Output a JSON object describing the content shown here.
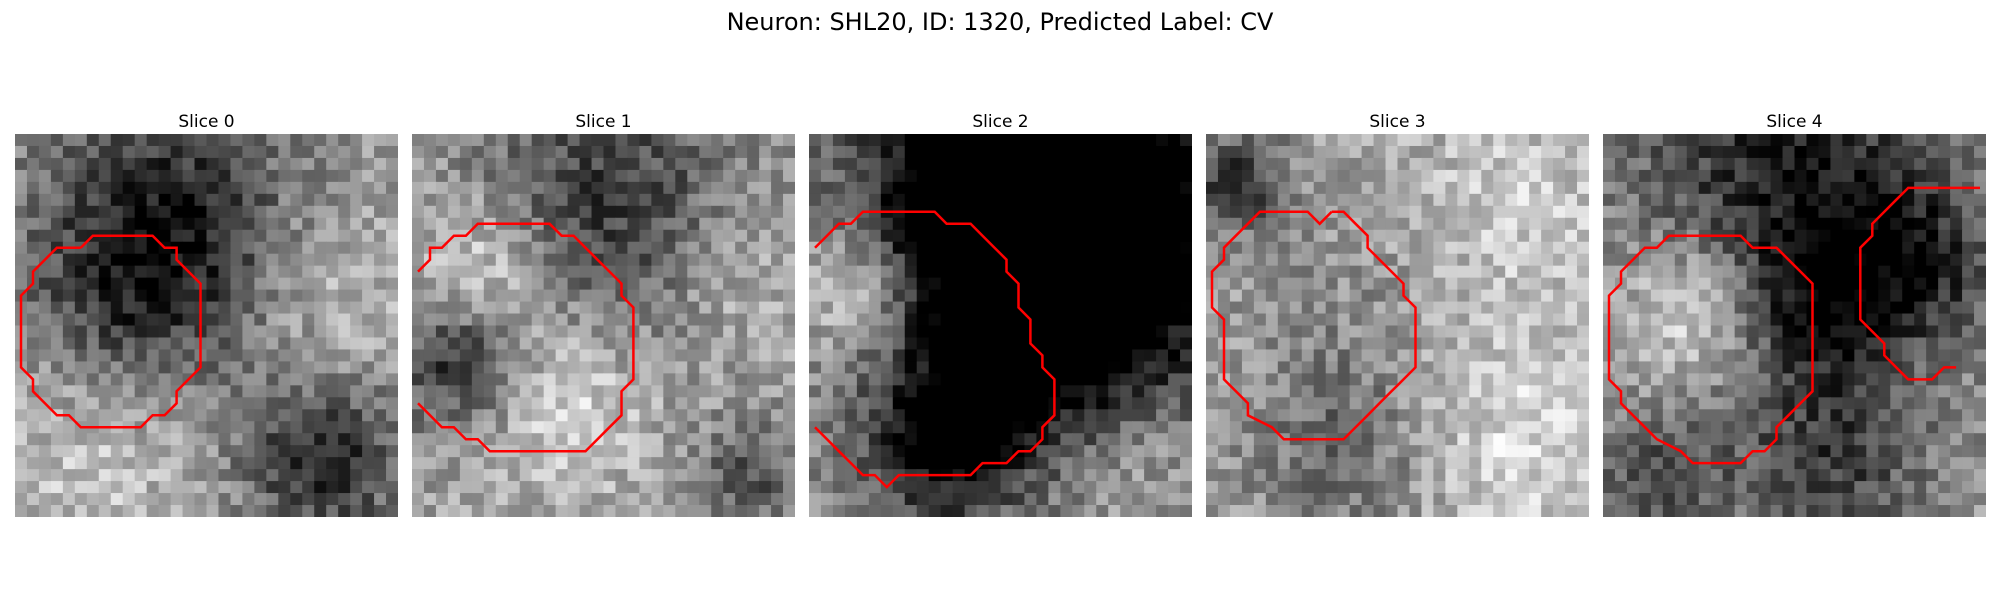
{
  "title": "Neuron: SHL20, ID: 1320, Predicted Label: CV",
  "contour_color": "#ff0000",
  "panels": [
    {
      "label": "Slice 0",
      "seed": 11,
      "mean": 0.58,
      "blobs": [
        [
          0.4,
          0.22,
          0.22,
          -0.45
        ],
        [
          0.3,
          0.45,
          0.18,
          -0.25
        ],
        [
          0.8,
          0.85,
          0.14,
          -0.45
        ],
        [
          0.85,
          0.4,
          0.18,
          0.15
        ],
        [
          0.2,
          0.85,
          0.2,
          0.2
        ]
      ]
    },
    {
      "label": "Slice 1",
      "seed": 23,
      "mean": 0.62,
      "blobs": [
        [
          0.5,
          0.18,
          0.25,
          -0.4
        ],
        [
          0.12,
          0.6,
          0.12,
          -0.45
        ],
        [
          0.2,
          0.35,
          0.14,
          0.3
        ],
        [
          0.4,
          0.7,
          0.16,
          0.25
        ],
        [
          0.85,
          0.35,
          0.14,
          0.15
        ],
        [
          0.88,
          0.9,
          0.1,
          -0.3
        ]
      ]
    },
    {
      "label": "Slice 2",
      "seed": 37,
      "mean": 0.55,
      "blobs": [
        [
          0.72,
          0.28,
          0.3,
          -0.8
        ],
        [
          0.55,
          0.15,
          0.25,
          -0.8
        ],
        [
          0.35,
          0.8,
          0.14,
          -0.55
        ],
        [
          0.12,
          0.4,
          0.12,
          0.35
        ],
        [
          0.85,
          0.85,
          0.14,
          0.15
        ],
        [
          0.55,
          0.6,
          0.18,
          -0.25
        ]
      ]
    },
    {
      "label": "Slice 3",
      "seed": 41,
      "mean": 0.66,
      "blobs": [
        [
          0.08,
          0.12,
          0.1,
          -0.45
        ],
        [
          0.35,
          0.85,
          0.18,
          -0.25
        ],
        [
          0.8,
          0.8,
          0.2,
          0.2
        ],
        [
          0.8,
          0.2,
          0.18,
          0.15
        ],
        [
          0.35,
          0.45,
          0.22,
          -0.1
        ]
      ]
    },
    {
      "label": "Slice 4",
      "seed": 53,
      "mean": 0.6,
      "blobs": [
        [
          0.5,
          0.15,
          0.3,
          -0.5
        ],
        [
          0.25,
          0.45,
          0.14,
          0.4
        ],
        [
          0.55,
          0.45,
          0.14,
          -0.3
        ],
        [
          0.82,
          0.35,
          0.14,
          -0.35
        ],
        [
          0.6,
          0.85,
          0.18,
          -0.35
        ],
        [
          0.15,
          0.9,
          0.12,
          -0.3
        ]
      ]
    }
  ],
  "contours": [
    [
      [
        [
          5,
          9
        ],
        [
          6,
          8
        ],
        [
          7,
          8
        ],
        [
          11,
          8
        ],
        [
          12,
          9
        ],
        [
          13,
          9
        ],
        [
          13,
          10
        ],
        [
          14,
          11
        ],
        [
          15,
          12
        ],
        [
          15,
          19
        ],
        [
          14,
          20
        ],
        [
          13,
          21
        ],
        [
          13,
          22
        ],
        [
          12,
          23
        ],
        [
          11,
          23
        ],
        [
          10,
          24
        ],
        [
          9,
          24
        ],
        [
          5,
          24
        ],
        [
          4,
          23
        ],
        [
          3,
          23
        ],
        [
          2,
          22
        ],
        [
          1,
          21
        ],
        [
          1,
          20
        ],
        [
          0,
          19
        ],
        [
          0,
          17
        ],
        [
          0,
          13
        ],
        [
          1,
          12
        ],
        [
          1,
          11
        ],
        [
          2,
          10
        ],
        [
          3,
          9
        ],
        [
          4,
          9
        ],
        [
          5,
          9
        ]
      ]
    ],
    [
      [
        [
          0,
          11
        ],
        [
          1,
          10
        ],
        [
          1,
          9
        ],
        [
          2,
          9
        ],
        [
          3,
          8
        ],
        [
          4,
          8
        ],
        [
          5,
          7
        ],
        [
          11,
          7
        ],
        [
          12,
          8
        ],
        [
          13,
          8
        ],
        [
          14,
          9
        ],
        [
          15,
          10
        ],
        [
          16,
          11
        ],
        [
          17,
          12
        ],
        [
          17,
          13
        ],
        [
          18,
          14
        ],
        [
          18,
          20
        ],
        [
          17,
          21
        ],
        [
          17,
          23
        ],
        [
          16,
          24
        ],
        [
          15,
          25
        ],
        [
          14,
          26
        ],
        [
          6,
          26
        ],
        [
          5,
          25
        ],
        [
          4,
          25
        ],
        [
          3,
          24
        ],
        [
          2,
          24
        ],
        [
          1,
          23
        ],
        [
          0,
          22
        ]
      ]
    ],
    [
      [
        [
          0,
          9
        ],
        [
          1,
          8
        ],
        [
          2,
          7
        ],
        [
          3,
          7
        ],
        [
          4,
          6
        ],
        [
          10,
          6
        ],
        [
          11,
          7
        ],
        [
          13,
          7
        ],
        [
          14,
          8
        ],
        [
          15,
          9
        ],
        [
          16,
          10
        ],
        [
          16,
          11
        ],
        [
          17,
          12
        ],
        [
          17,
          14
        ],
        [
          18,
          15
        ],
        [
          18,
          16
        ],
        [
          18,
          17
        ],
        [
          19,
          18
        ],
        [
          19,
          19
        ],
        [
          20,
          20
        ],
        [
          20,
          23
        ],
        [
          19,
          24
        ],
        [
          19,
          25
        ],
        [
          18,
          26
        ],
        [
          17,
          26
        ],
        [
          16,
          27
        ],
        [
          14,
          27
        ],
        [
          13,
          28
        ],
        [
          7,
          28
        ],
        [
          6,
          29
        ],
        [
          5,
          28
        ],
        [
          4,
          28
        ],
        [
          3,
          27
        ],
        [
          2,
          26
        ],
        [
          1,
          25
        ],
        [
          0,
          24
        ]
      ]
    ],
    [
      [
        [
          10,
          6
        ],
        [
          9,
          7
        ],
        [
          8,
          6
        ],
        [
          4,
          6
        ],
        [
          3,
          7
        ],
        [
          2,
          8
        ],
        [
          1,
          9
        ],
        [
          1,
          10
        ],
        [
          0,
          11
        ],
        [
          0,
          12
        ],
        [
          0,
          13
        ],
        [
          0,
          14
        ],
        [
          1,
          15
        ],
        [
          1,
          16
        ],
        [
          1,
          18
        ],
        [
          1,
          20
        ],
        [
          2,
          21
        ],
        [
          3,
          22
        ],
        [
          3,
          23
        ],
        [
          5,
          24
        ],
        [
          6,
          25
        ],
        [
          11,
          25
        ],
        [
          12,
          24
        ],
        [
          13,
          23
        ],
        [
          14,
          22
        ],
        [
          15,
          21
        ],
        [
          16,
          20
        ],
        [
          17,
          19
        ],
        [
          17,
          14
        ],
        [
          16,
          13
        ],
        [
          16,
          12
        ],
        [
          15,
          11
        ],
        [
          14,
          10
        ],
        [
          13,
          9
        ],
        [
          13,
          8
        ],
        [
          12,
          7
        ],
        [
          11,
          6
        ],
        [
          10,
          6
        ]
      ]
    ],
    [
      [
        [
          6,
          8
        ],
        [
          5,
          8
        ],
        [
          4,
          9
        ],
        [
          3,
          9
        ],
        [
          2,
          10
        ],
        [
          1,
          11
        ],
        [
          1,
          12
        ],
        [
          0,
          13
        ],
        [
          0,
          20
        ],
        [
          1,
          21
        ],
        [
          1,
          22
        ],
        [
          2,
          23
        ],
        [
          3,
          24
        ],
        [
          4,
          25
        ],
        [
          6,
          26
        ],
        [
          7,
          27
        ],
        [
          11,
          27
        ],
        [
          12,
          26
        ],
        [
          13,
          26
        ],
        [
          14,
          25
        ],
        [
          14,
          24
        ],
        [
          15,
          23
        ],
        [
          16,
          22
        ],
        [
          17,
          21
        ],
        [
          17,
          19
        ],
        [
          17,
          12
        ],
        [
          16,
          11
        ],
        [
          15,
          10
        ],
        [
          14,
          9
        ],
        [
          12,
          9
        ],
        [
          11,
          8
        ],
        [
          8,
          8
        ],
        [
          7,
          8
        ],
        [
          6,
          8
        ]
      ],
      [
        [
          31,
          4
        ],
        [
          25,
          4
        ],
        [
          24,
          5
        ],
        [
          23,
          6
        ],
        [
          22,
          7
        ],
        [
          22,
          8
        ],
        [
          21,
          9
        ],
        [
          21,
          15
        ],
        [
          22,
          16
        ],
        [
          23,
          17
        ],
        [
          23,
          18
        ],
        [
          24,
          19
        ],
        [
          25,
          20
        ],
        [
          26,
          20
        ],
        [
          27,
          20
        ],
        [
          28,
          19
        ],
        [
          29,
          19
        ]
      ]
    ]
  ]
}
